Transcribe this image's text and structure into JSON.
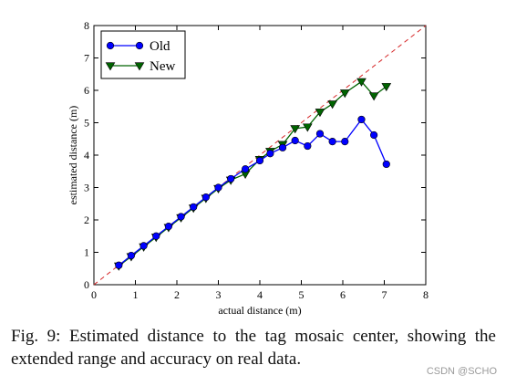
{
  "chart_data": {
    "type": "line",
    "xlabel": "actual distance (m)",
    "ylabel": "estimated distance (m)",
    "xlim": [
      0,
      8
    ],
    "ylim": [
      0,
      8
    ],
    "xticks": [
      "0",
      "1",
      "2",
      "3",
      "4",
      "5",
      "6",
      "7",
      "8"
    ],
    "yticks": [
      "0",
      "1",
      "2",
      "3",
      "4",
      "5",
      "6",
      "7",
      "8"
    ],
    "grid": false,
    "legend_position": "top-left",
    "reference_line": {
      "type": "identity",
      "color": "#d62728",
      "style": "dashed"
    },
    "series": [
      {
        "name": "Old",
        "color": "#0000ff",
        "marker": "circle",
        "x": [
          0.6,
          0.9,
          1.2,
          1.5,
          1.8,
          2.1,
          2.4,
          2.7,
          3.0,
          3.3,
          3.65,
          4.0,
          4.25,
          4.55,
          4.85,
          5.15,
          5.45,
          5.75,
          6.05,
          6.45,
          6.75,
          7.05
        ],
        "y": [
          0.6,
          0.9,
          1.2,
          1.5,
          1.8,
          2.1,
          2.4,
          2.7,
          3.0,
          3.27,
          3.57,
          3.83,
          4.05,
          4.23,
          4.45,
          4.28,
          4.66,
          4.42,
          4.42,
          5.1,
          4.62,
          3.72
        ]
      },
      {
        "name": "New",
        "color": "#006400",
        "marker": "triangle-down",
        "x": [
          0.6,
          0.9,
          1.2,
          1.5,
          1.8,
          2.1,
          2.4,
          2.7,
          3.0,
          3.3,
          3.65,
          4.0,
          4.25,
          4.55,
          4.85,
          5.15,
          5.45,
          5.75,
          6.05,
          6.45,
          6.75,
          7.05
        ],
        "y": [
          0.58,
          0.87,
          1.17,
          1.47,
          1.77,
          2.07,
          2.37,
          2.67,
          2.97,
          3.23,
          3.42,
          3.87,
          4.12,
          4.33,
          4.82,
          4.87,
          5.33,
          5.58,
          5.92,
          6.27,
          5.83,
          6.12
        ]
      }
    ]
  },
  "caption": "Fig. 9: Estimated distance to the tag mosaic center, showing the extended range and accuracy on real data.",
  "watermark": "CSDN @SCHO"
}
